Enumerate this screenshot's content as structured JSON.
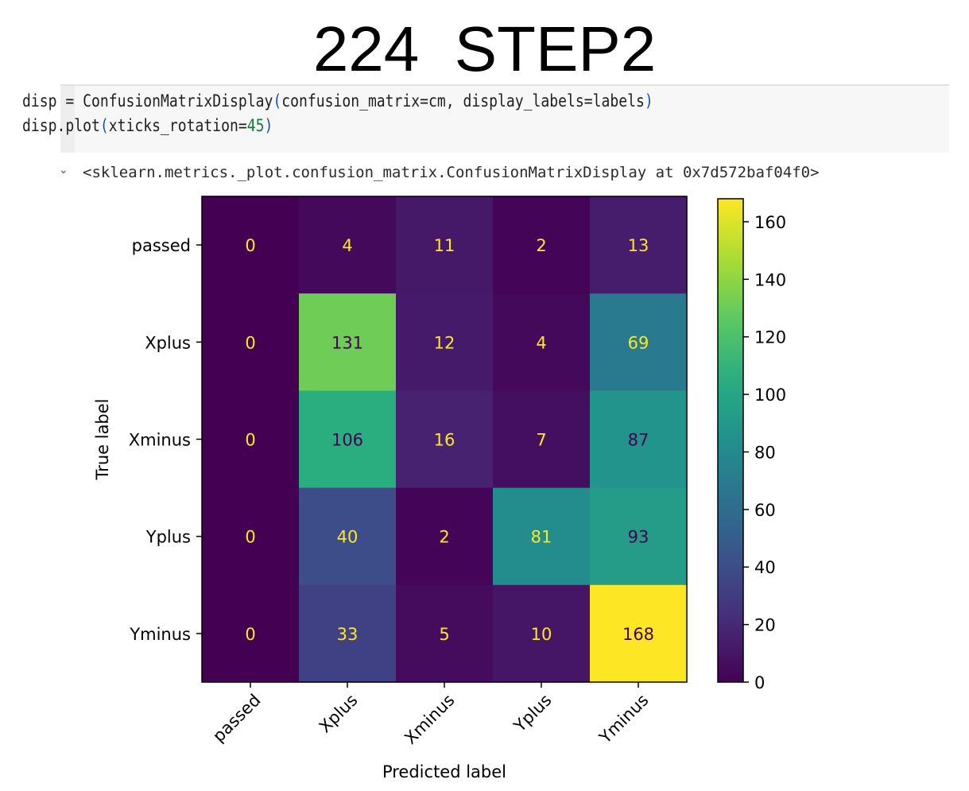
{
  "slide": {
    "title": "224  STEP2"
  },
  "code_cell": {
    "line1": {
      "pre": "disp = ConfusionMatrixDisplay",
      "open": "(",
      "args": "confusion_matrix=cm, display_labels=labels",
      "close": ")"
    },
    "line2": {
      "pre": "disp.plot",
      "open": "(",
      "args": "xticks_rotation=",
      "num": "45",
      "close": ")"
    }
  },
  "output": {
    "marker": "⌄",
    "text": "<sklearn.metrics._plot.confusion_matrix.ConfusionMatrixDisplay at 0x7d572baf04f0>"
  },
  "colors": {
    "colormap": "viridis",
    "text_on_dark": "#fde725",
    "text_on_light": "#440154"
  },
  "chart_data": {
    "type": "heatmap",
    "xlabel": "Predicted label",
    "ylabel": "True label",
    "x_categories": [
      "passed",
      "Xplus",
      "Xminus",
      "Yplus",
      "Yminus"
    ],
    "y_categories": [
      "passed",
      "Xplus",
      "Xminus",
      "Yplus",
      "Yminus"
    ],
    "matrix": [
      [
        0,
        4,
        11,
        2,
        13
      ],
      [
        0,
        131,
        12,
        4,
        69
      ],
      [
        0,
        106,
        16,
        7,
        87
      ],
      [
        0,
        40,
        2,
        81,
        93
      ],
      [
        0,
        33,
        5,
        10,
        168
      ]
    ],
    "xticks_rotation": 45,
    "colorbar": {
      "range": [
        0,
        168
      ],
      "ticks": [
        0,
        20,
        40,
        60,
        80,
        100,
        120,
        140,
        160
      ]
    }
  }
}
